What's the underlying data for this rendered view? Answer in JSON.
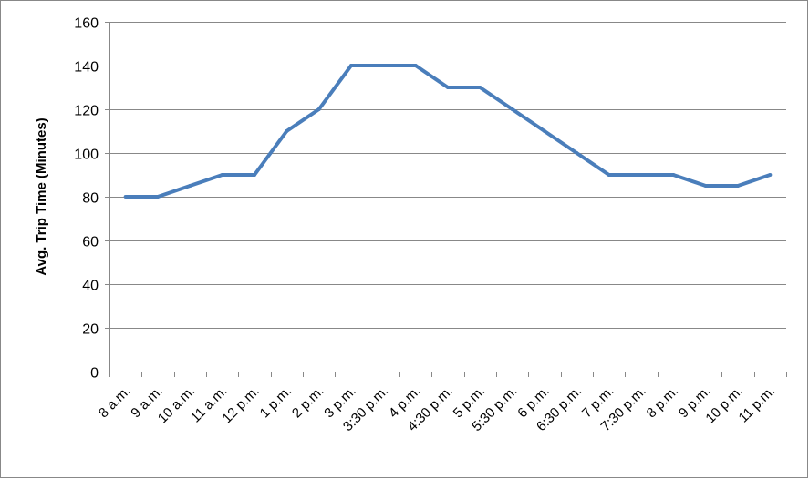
{
  "chart_data": {
    "type": "line",
    "title": "",
    "xlabel": "",
    "ylabel": "Avg. Trip Time (Minutes)",
    "ylim": [
      0,
      160
    ],
    "yticks": [
      0,
      20,
      40,
      60,
      80,
      100,
      120,
      140,
      160
    ],
    "grid": true,
    "legend": "none",
    "line_color": "#4A7EBB",
    "categories": [
      "8 a.m.",
      "9 a.m.",
      "10 a.m.",
      "11 a.m.",
      "12 p.m.",
      "1 p.m.",
      "2 p.m.",
      "3 p.m.",
      "3:30 p.m.",
      "4 p.m.",
      "4:30 p.m.",
      "5 p.m.",
      "5:30 p.m.",
      "6 p.m.",
      "6:30 p.m.",
      "7 p.m.",
      "7:30 p.m.",
      "8 p.m.",
      "9 p.m.",
      "10 p.m.",
      "11 p.m."
    ],
    "values": [
      80,
      80,
      85,
      90,
      90,
      110,
      120,
      140,
      140,
      140,
      130,
      130,
      120,
      110,
      100,
      90,
      90,
      90,
      85,
      85,
      90
    ]
  }
}
